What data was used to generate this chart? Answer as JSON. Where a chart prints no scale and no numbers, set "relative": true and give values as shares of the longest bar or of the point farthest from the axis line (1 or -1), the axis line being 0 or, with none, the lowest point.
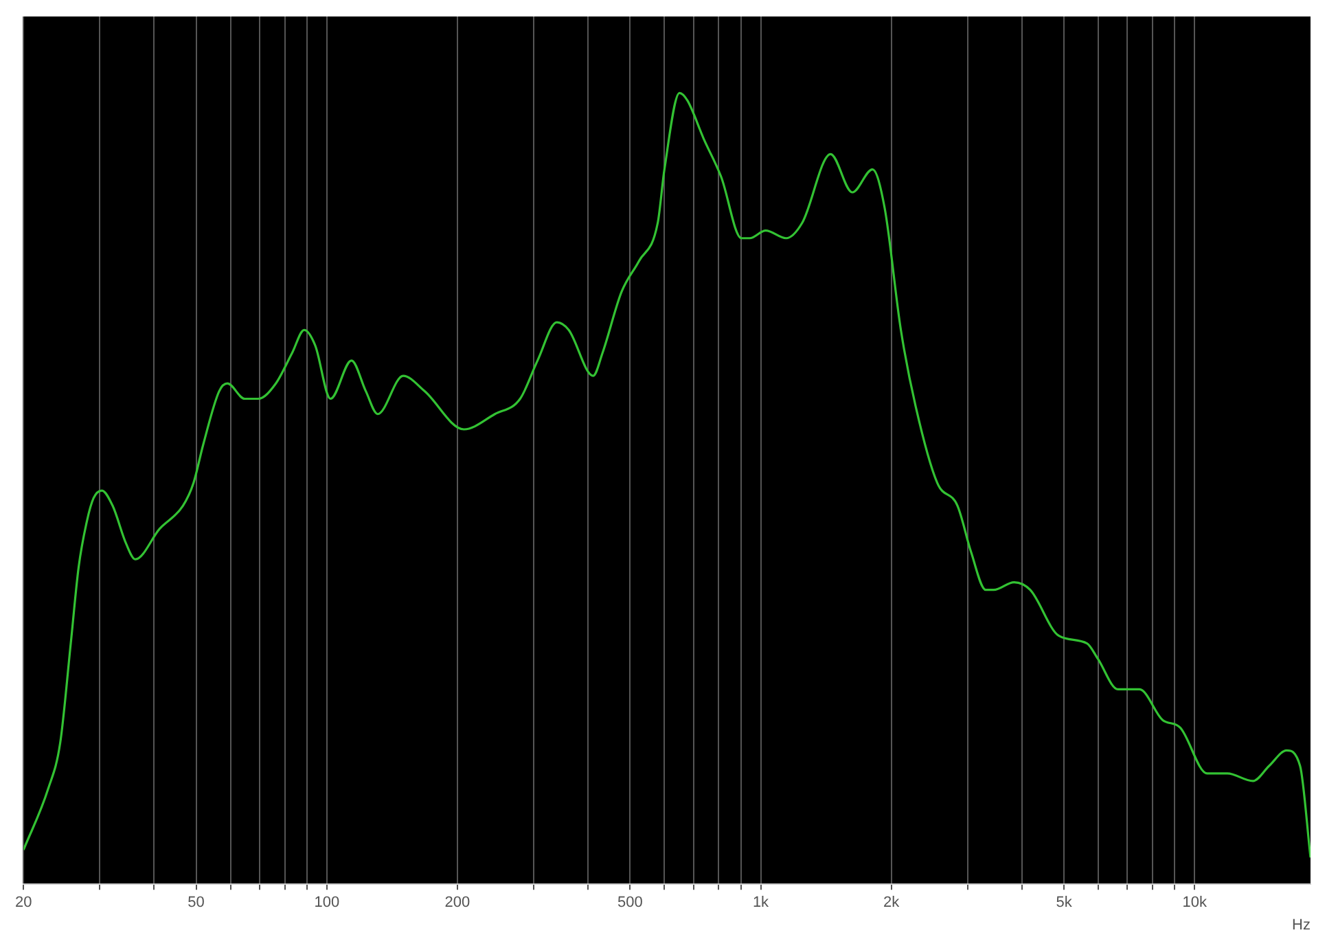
{
  "chart_data": {
    "type": "line",
    "relative": true,
    "xlabel": "Hz",
    "log": "x",
    "grid": "x",
    "marker": "none",
    "line_style": "solid",
    "xlim": [
      20,
      18500
    ],
    "xticks": [
      20,
      {
        "value": 30,
        "label": null
      },
      {
        "value": 40,
        "label": null
      },
      50,
      {
        "value": 60,
        "label": null
      },
      {
        "value": 70,
        "label": null
      },
      {
        "value": 80,
        "label": null
      },
      {
        "value": 90,
        "label": null
      },
      100,
      200,
      {
        "value": 300,
        "label": null
      },
      {
        "value": 400,
        "label": null
      },
      500,
      {
        "value": 600,
        "label": null
      },
      {
        "value": 700,
        "label": null
      },
      {
        "value": 800,
        "label": null
      },
      {
        "value": 900,
        "label": null
      },
      {
        "value": 1000,
        "label": "1k"
      },
      {
        "value": 2000,
        "label": "2k"
      },
      {
        "value": 3000,
        "label": null
      },
      {
        "value": 4000,
        "label": null
      },
      {
        "value": 5000,
        "label": "5k"
      },
      {
        "value": 6000,
        "label": null
      },
      {
        "value": 7000,
        "label": null
      },
      {
        "value": 8000,
        "label": null
      },
      {
        "value": 9000,
        "label": null
      },
      {
        "value": 10000,
        "label": "10k"
      }
    ],
    "series": [
      {
        "color": "#33c233",
        "x": [
          20,
          22.8,
          24.3,
          25.7,
          26.8,
          28,
          29,
          30.3,
          32.1,
          34.5,
          36.2,
          41.2,
          46.6,
          49.3,
          51.9,
          56.5,
          59,
          64.7,
          69.5,
          76.3,
          83.2,
          88.7,
          94,
          102,
          114,
          123,
          131,
          150,
          168,
          207,
          244,
          279,
          306,
          339,
          361,
          411,
          432,
          478,
          524,
          579,
          600,
          650,
          678,
          739,
          811,
          903,
          943,
          1027,
          1144,
          1246,
          1449,
          1626,
          1810,
          1930,
          2104,
          2276,
          2552,
          2842,
          3052,
          3302,
          3444,
          3838,
          4180,
          4864,
          5650,
          5984,
          6660,
          7465,
          8433,
          9262,
          10690,
          11900,
          13630,
          14860,
          16300,
          17500,
          18500
        ],
        "values": [
          0.01,
          0.09,
          0.15,
          0.28,
          0.38,
          0.44,
          0.47,
          0.48,
          0.46,
          0.41,
          0.39,
          0.43,
          0.46,
          0.49,
          0.54,
          0.61,
          0.62,
          0.6,
          0.6,
          0.62,
          0.66,
          0.69,
          0.67,
          0.6,
          0.65,
          0.61,
          0.58,
          0.63,
          0.61,
          0.56,
          0.58,
          0.6,
          0.65,
          0.7,
          0.69,
          0.63,
          0.66,
          0.74,
          0.78,
          0.83,
          0.9,
          1,
          0.99,
          0.94,
          0.89,
          0.81,
          0.81,
          0.82,
          0.81,
          0.83,
          0.92,
          0.87,
          0.9,
          0.85,
          0.69,
          0.59,
          0.49,
          0.46,
          0.4,
          0.35,
          0.35,
          0.36,
          0.35,
          0.29,
          0.28,
          0.26,
          0.22,
          0.22,
          0.18,
          0.17,
          0.11,
          0.11,
          0.1,
          0.12,
          0.14,
          0.12,
          0
        ]
      }
    ]
  }
}
